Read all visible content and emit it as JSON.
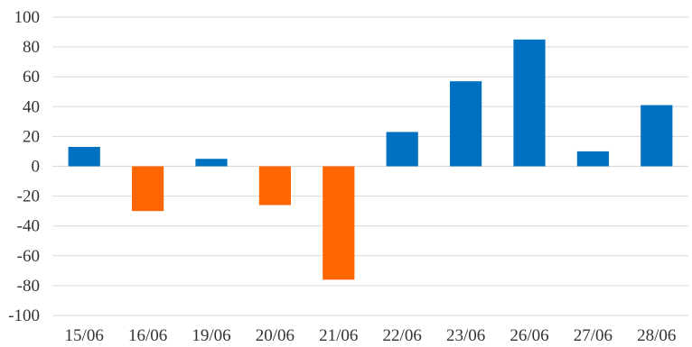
{
  "chart_data": {
    "type": "bar",
    "categories": [
      "15/06",
      "16/06",
      "19/06",
      "20/06",
      "21/06",
      "22/06",
      "23/06",
      "26/06",
      "27/06",
      "28/06"
    ],
    "values": [
      13,
      -30,
      5,
      -26,
      -76,
      23,
      57,
      85,
      10,
      41
    ],
    "ylim": [
      -100,
      100
    ],
    "yticks": [
      100,
      80,
      60,
      40,
      20,
      0,
      -20,
      -40,
      -60,
      -80,
      -100
    ],
    "grid": true,
    "legend": "none",
    "colors": {
      "positive": "#0070c0",
      "negative": "#ff6600"
    }
  }
}
